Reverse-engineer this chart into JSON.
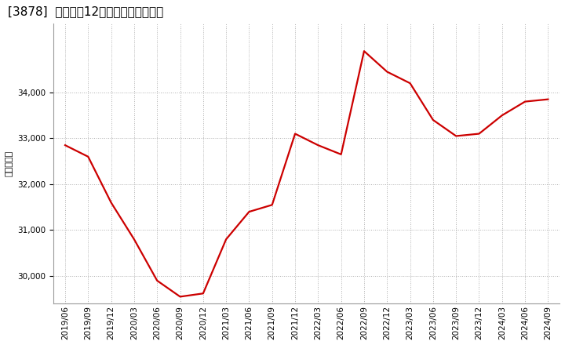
{
  "title": "[3878]  売上高の12か月移動合計の推移",
  "ylabel": "（百万円）",
  "line_color": "#cc0000",
  "bg_color": "#ffffff",
  "plot_bg_color": "#ffffff",
  "grid_color": "#b0b0b0",
  "dates": [
    "2019/06",
    "2019/09",
    "2019/12",
    "2020/03",
    "2020/06",
    "2020/09",
    "2020/12",
    "2021/03",
    "2021/06",
    "2021/09",
    "2021/12",
    "2022/03",
    "2022/06",
    "2022/09",
    "2022/12",
    "2023/03",
    "2023/06",
    "2023/09",
    "2023/12",
    "2024/03",
    "2024/06",
    "2024/09"
  ],
  "values": [
    32850,
    32600,
    31600,
    30800,
    29900,
    29550,
    29620,
    30800,
    31400,
    31550,
    33100,
    32850,
    32650,
    34900,
    34450,
    34200,
    33400,
    33050,
    33100,
    33500,
    33800,
    33850
  ],
  "ylim": [
    29400,
    35500
  ],
  "yticks": [
    30000,
    31000,
    32000,
    33000,
    34000
  ],
  "title_fontsize": 11,
  "tick_fontsize": 7.5,
  "ylabel_fontsize": 8,
  "line_width": 1.6
}
